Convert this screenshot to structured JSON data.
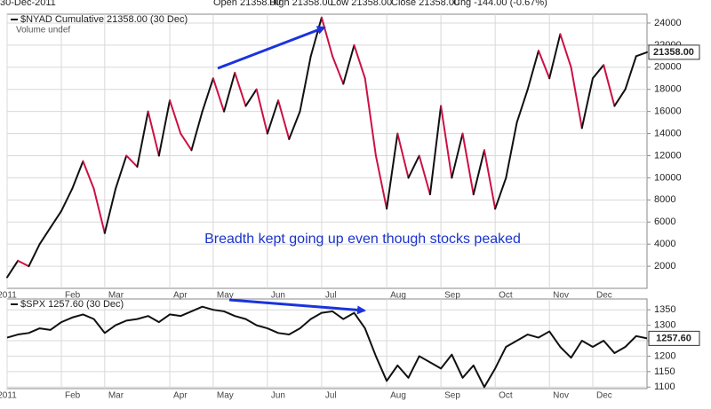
{
  "header": [
    "30-Dec-2011",
    "Open 21358.00",
    "High 21358.00",
    "Low 21358.00",
    "Close 21358.00",
    "Chg -144.00 (-0.67%)"
  ],
  "annotation": "Breadth kept going up even though stocks peaked",
  "chart_data": [
    {
      "type": "updown_line",
      "title": "$NYAD Cumulative 21358.00 (30 Dec)",
      "subtitle": "Volume undef",
      "categories": [
        "2011",
        null,
        null,
        null,
        null,
        "Feb",
        null,
        null,
        null,
        "Mar",
        null,
        null,
        null,
        null,
        null,
        "Apr",
        null,
        null,
        null,
        "May",
        null,
        null,
        null,
        null,
        "Jun",
        null,
        null,
        null,
        null,
        "Jul",
        null,
        null,
        null,
        null,
        null,
        "Aug",
        null,
        null,
        null,
        null,
        "Sep",
        null,
        null,
        null,
        null,
        "Oct",
        null,
        null,
        null,
        null,
        "Nov",
        null,
        null,
        null,
        "Dec",
        null,
        null,
        null,
        null,
        null
      ],
      "values": [
        1000,
        2500,
        2000,
        4000,
        5500,
        7000,
        9000,
        11500,
        9000,
        5000,
        9000,
        12000,
        11000,
        16000,
        12000,
        17000,
        14000,
        12500,
        16000,
        19000,
        16000,
        19500,
        16500,
        18000,
        14000,
        17000,
        13500,
        16000,
        21000,
        24500,
        21000,
        18500,
        22000,
        19000,
        12000,
        7200,
        14000,
        10000,
        12000,
        8500,
        16500,
        10000,
        14000,
        8500,
        12500,
        7200,
        10000,
        15000,
        18000,
        21500,
        19000,
        23000,
        20000,
        14500,
        19000,
        20200,
        16500,
        18000,
        21000,
        21358
      ],
      "last_label": "21358.00",
      "up_color": "#111111",
      "down_color": "#cc1144",
      "ylim": [
        0,
        24800
      ],
      "yticks": [
        2000,
        4000,
        6000,
        8000,
        10000,
        12000,
        14000,
        16000,
        18000,
        20000,
        22000,
        24000
      ],
      "grid": true
    },
    {
      "type": "line",
      "title": "$SPX 1257.60 (30 Dec)",
      "categories": [
        "2011",
        null,
        null,
        null,
        null,
        "Feb",
        null,
        null,
        null,
        "Mar",
        null,
        null,
        null,
        null,
        null,
        "Apr",
        null,
        null,
        null,
        "May",
        null,
        null,
        null,
        null,
        "Jun",
        null,
        null,
        null,
        null,
        "Jul",
        null,
        null,
        null,
        null,
        null,
        "Aug",
        null,
        null,
        null,
        null,
        "Sep",
        null,
        null,
        null,
        null,
        "Oct",
        null,
        null,
        null,
        null,
        "Nov",
        null,
        null,
        null,
        "Dec",
        null,
        null,
        null,
        null,
        null
      ],
      "values": [
        1260,
        1270,
        1275,
        1290,
        1285,
        1310,
        1325,
        1335,
        1320,
        1275,
        1300,
        1315,
        1320,
        1330,
        1310,
        1335,
        1330,
        1345,
        1360,
        1350,
        1345,
        1330,
        1320,
        1300,
        1290,
        1275,
        1270,
        1290,
        1320,
        1340,
        1345,
        1320,
        1340,
        1290,
        1200,
        1120,
        1170,
        1130,
        1200,
        1180,
        1160,
        1205,
        1130,
        1170,
        1100,
        1160,
        1230,
        1250,
        1270,
        1260,
        1280,
        1230,
        1195,
        1250,
        1230,
        1250,
        1210,
        1230,
        1265,
        1257.6
      ],
      "last_label": "1257.60",
      "color": "#111111",
      "ylim": [
        1095,
        1385
      ],
      "yticks": [
        1100,
        1150,
        1200,
        1250,
        1300,
        1350
      ],
      "grid": true
    }
  ]
}
